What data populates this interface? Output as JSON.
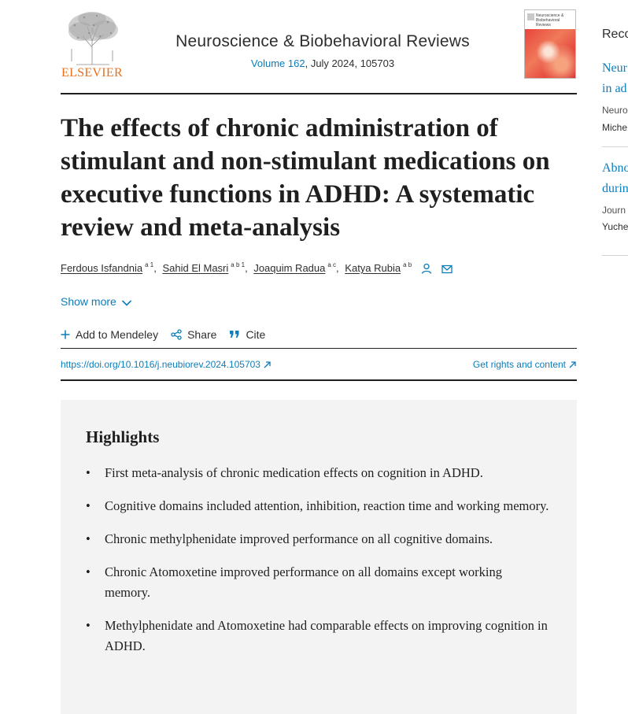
{
  "publisher": {
    "logo_text": "ELSEVIER",
    "brand_color": "#e9711c"
  },
  "journal": {
    "title": "Neuroscience & Biobehavioral Reviews",
    "volume_link": "Volume 162",
    "issue_rest": ", July 2024, 105703",
    "cover_text": "Neuroscience & Biobehavioral Reviews"
  },
  "article": {
    "title": "The effects of chronic administration of stimulant and non-stimulant medications on executive functions in ADHD: A systematic review and meta-analysis",
    "authors": [
      {
        "name": "Ferdous Isfandnia",
        "sup": "a 1"
      },
      {
        "name": "Sahid El Masri",
        "sup": "a b 1"
      },
      {
        "name": "Joaquim Radua",
        "sup": "a c"
      },
      {
        "name": "Katya Rubia",
        "sup": "a b"
      }
    ],
    "show_more": "Show more",
    "actions": {
      "mendeley": "Add to Mendeley",
      "share": "Share",
      "cite": "Cite"
    },
    "doi": "https://doi.org/10.1016/j.neubiorev.2024.105703",
    "rights": "Get rights and content"
  },
  "highlights": {
    "title": "Highlights",
    "items": [
      "First meta-analysis of chronic medication effects on cognition in ADHD.",
      "Cognitive domains included attention, inhibition, reaction time and working memory.",
      "Chronic methylphenidate improved performance on all cognitive domains.",
      "Chronic Atomoxetine improved performance on all domains except working memory.",
      "Methylphenidate and Atomoxetine had comparable effects on improving cognition in ADHD."
    ]
  },
  "sidebar": {
    "heading": "Reco",
    "items": [
      {
        "line1": "Neur",
        "line2": "in ad",
        "meta": "Neuro",
        "authors": "Miche"
      },
      {
        "line1": "Abno",
        "line2": "durin",
        "meta": "Journ",
        "authors": "Yuche"
      }
    ]
  },
  "colors": {
    "link": "#0c7dbb",
    "text": "#1f1f1f",
    "highlights_bg": "#f3f3f3"
  }
}
